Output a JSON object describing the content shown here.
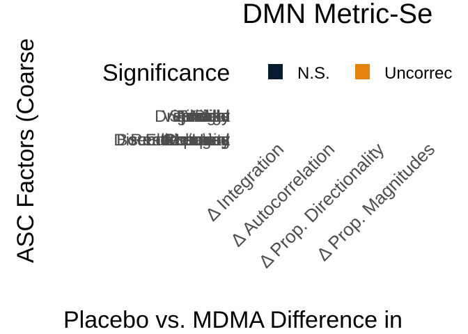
{
  "chart_data": {
    "type": "heatmap",
    "title": "DMN Metric-Se",
    "xlabel": "Placebo vs. MDMA Difference in",
    "ylabel": "ASC Factors (Coarse",
    "x_categories": [
      "Δ Integration",
      "Δ Autocorrelation",
      "Δ Prop. Directionality",
      "Δ Prop. Magnitudes"
    ],
    "y_rows": [
      {
        "labels": [
          "Dreamlike",
          "Vigilance",
          "Anxiety",
          "Spiritual",
          "Bliss",
          "Insight",
          "Audio",
          "Visual",
          "Energy"
        ]
      },
      {
        "labels": [
          "Restructuring",
          "Boundlessness",
          "Disembodiment",
          "Elementary",
          "Complex",
          "Meaning",
          "Changed",
          "Impaired",
          "Unity"
        ]
      }
    ],
    "legend": {
      "title": "Significance",
      "placement": "top",
      "entries": [
        {
          "label": "N.S.",
          "color": "#061a30"
        },
        {
          "label": "Uncorrec",
          "color": "#e8820e"
        }
      ]
    }
  }
}
